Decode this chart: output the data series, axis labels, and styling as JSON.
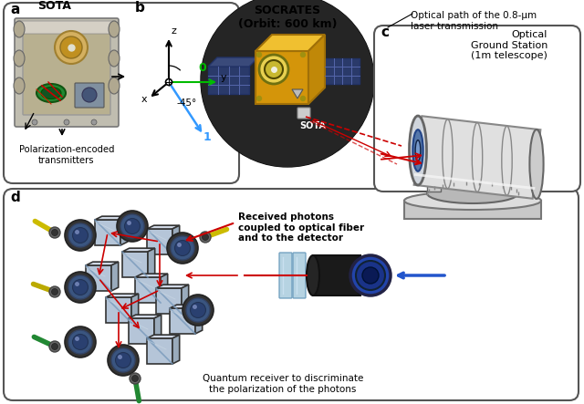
{
  "bg_color": "#ffffff",
  "panels": {
    "a_label": "a",
    "a_subtitle": "SOTA",
    "a_caption": "Polarization-encoded\ntransmitters",
    "b_label": "b",
    "b_angle": "-45°",
    "b_axis_0": "0",
    "b_axis_1": "1",
    "b_axis_z": "z",
    "b_axis_y": "y",
    "b_axis_x": "x",
    "c_label": "c",
    "c_subtitle": "Optical\nGround Station\n(1m telescope)",
    "d_label": "d",
    "d_caption1": "Received photons\ncoupled to optical fiber\nand to the detector",
    "d_caption2": "Quantum receiver to discriminate\nthe polarization of the photons",
    "satellite_label": "SOCRATES\n(Orbit: 600 km)",
    "sota_label": "SOTA",
    "optical_path_label": "Optical path of the 0.8-μm\nlaser transmission"
  },
  "colors": {
    "red_arrow": "#cc0000",
    "blue_arrow": "#2255cc",
    "green_axis": "#00bb00",
    "blue_axis": "#3399ff",
    "sat_gold": "#d4950a",
    "sat_gold_dark": "#a07008",
    "sat_gold_light": "#f0c030",
    "solar_panel": "#334477",
    "panel_border": "#555555",
    "telescope_body": "#d8d8d8",
    "telescope_dark": "#aaaaaa",
    "telescope_darker": "#888888"
  }
}
